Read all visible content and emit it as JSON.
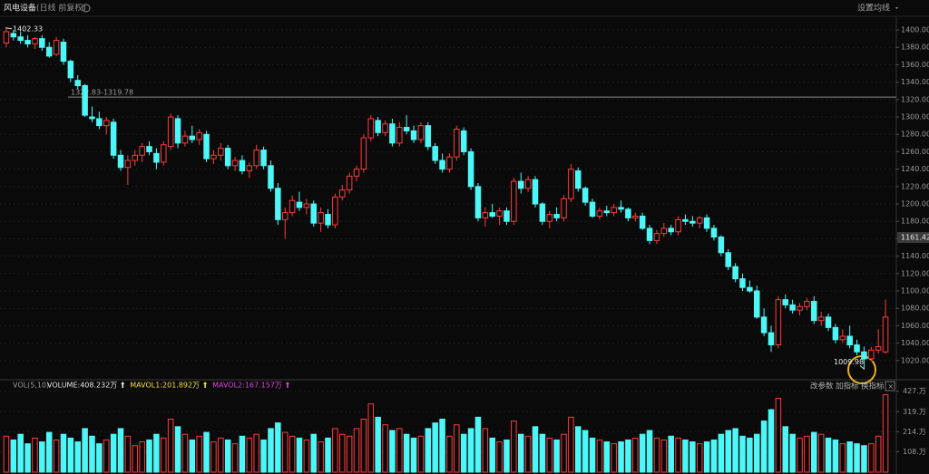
{
  "header": {
    "title": "风电设备",
    "mode": "(日线 前复权)",
    "ma_setting": "设置均线"
  },
  "chart_data": [
    {
      "type": "candlestick",
      "up_color": "#ff3b3b",
      "down_color": "#4df7f7",
      "grid": true,
      "ylim": [
        999,
        1424
      ],
      "yticks": [
        {
          "value": 1400,
          "label": "1400.00"
        },
        {
          "value": 1380,
          "label": "1380.00"
        },
        {
          "value": 1360,
          "label": "1360.00"
        },
        {
          "value": 1340,
          "label": "1340.00"
        },
        {
          "value": 1320,
          "label": "1320.00"
        },
        {
          "value": 1300,
          "label": "1300.00"
        },
        {
          "value": 1280,
          "label": "1280.00"
        },
        {
          "value": 1260,
          "label": "1260.00"
        },
        {
          "value": 1240,
          "label": "1240.00"
        },
        {
          "value": 1220,
          "label": "1220.00"
        },
        {
          "value": 1200,
          "label": "1200.00"
        },
        {
          "value": 1180,
          "label": "1180.00"
        },
        {
          "value": 1160,
          "label": "1160.00"
        },
        {
          "value": 1140,
          "label": "1140.00"
        },
        {
          "value": 1120,
          "label": "1120.00"
        },
        {
          "value": 1100,
          "label": "1100.00"
        },
        {
          "value": 1080,
          "label": "1080.00"
        },
        {
          "value": 1060,
          "label": "1060.00"
        },
        {
          "value": 1040,
          "label": "1040.00"
        },
        {
          "value": 1020,
          "label": "1020.00"
        }
      ],
      "high_label": 1402.33,
      "low_label": 1009.98,
      "current_price": 1161.42,
      "range_line": {
        "label": "1322.83-1319.78",
        "value": 1322.83
      },
      "ohlc": [
        [
          1385,
          1402.33,
          1380,
          1398
        ],
        [
          1396,
          1400,
          1388,
          1392
        ],
        [
          1392,
          1398,
          1384,
          1388
        ],
        [
          1388,
          1394,
          1380,
          1384
        ],
        [
          1384,
          1392,
          1378,
          1390
        ],
        [
          1390,
          1394,
          1376,
          1380
        ],
        [
          1380,
          1386,
          1368,
          1370
        ],
        [
          1372,
          1392,
          1370,
          1388
        ],
        [
          1386,
          1390,
          1360,
          1364
        ],
        [
          1364,
          1366,
          1340,
          1345
        ],
        [
          1342,
          1348,
          1332,
          1336
        ],
        [
          1336,
          1338,
          1300,
          1302
        ],
        [
          1300,
          1312,
          1294,
          1298
        ],
        [
          1298,
          1306,
          1286,
          1290
        ],
        [
          1290,
          1300,
          1280,
          1296
        ],
        [
          1294,
          1298,
          1252,
          1256
        ],
        [
          1256,
          1262,
          1238,
          1242
        ],
        [
          1242,
          1256,
          1222,
          1250
        ],
        [
          1250,
          1262,
          1244,
          1256
        ],
        [
          1256,
          1270,
          1248,
          1266
        ],
        [
          1266,
          1272,
          1256,
          1260
        ],
        [
          1258,
          1264,
          1240,
          1248
        ],
        [
          1248,
          1272,
          1244,
          1268
        ],
        [
          1266,
          1304,
          1262,
          1300
        ],
        [
          1298,
          1302,
          1264,
          1270
        ],
        [
          1270,
          1284,
          1266,
          1278
        ],
        [
          1278,
          1290,
          1270,
          1274
        ],
        [
          1274,
          1286,
          1268,
          1282
        ],
        [
          1280,
          1284,
          1248,
          1252
        ],
        [
          1252,
          1262,
          1246,
          1256
        ],
        [
          1256,
          1270,
          1250,
          1264
        ],
        [
          1264,
          1268,
          1240,
          1244
        ],
        [
          1244,
          1254,
          1238,
          1250
        ],
        [
          1250,
          1256,
          1234,
          1238
        ],
        [
          1238,
          1248,
          1230,
          1244
        ],
        [
          1244,
          1268,
          1240,
          1262
        ],
        [
          1262,
          1266,
          1240,
          1244
        ],
        [
          1244,
          1250,
          1214,
          1218
        ],
        [
          1218,
          1224,
          1176,
          1182
        ],
        [
          1182,
          1196,
          1160,
          1190
        ],
        [
          1190,
          1210,
          1186,
          1204
        ],
        [
          1202,
          1214,
          1192,
          1196
        ],
        [
          1196,
          1206,
          1188,
          1200
        ],
        [
          1200,
          1204,
          1174,
          1178
        ],
        [
          1178,
          1196,
          1168,
          1190
        ],
        [
          1188,
          1194,
          1172,
          1176
        ],
        [
          1176,
          1212,
          1172,
          1208
        ],
        [
          1208,
          1222,
          1204,
          1216
        ],
        [
          1216,
          1236,
          1212,
          1232
        ],
        [
          1232,
          1244,
          1226,
          1240
        ],
        [
          1240,
          1280,
          1236,
          1276
        ],
        [
          1276,
          1302,
          1272,
          1298
        ],
        [
          1296,
          1300,
          1278,
          1282
        ],
        [
          1282,
          1296,
          1278,
          1292
        ],
        [
          1292,
          1298,
          1266,
          1270
        ],
        [
          1270,
          1294,
          1266,
          1288
        ],
        [
          1288,
          1302,
          1280,
          1284
        ],
        [
          1284,
          1290,
          1270,
          1274
        ],
        [
          1274,
          1294,
          1270,
          1290
        ],
        [
          1290,
          1294,
          1262,
          1266
        ],
        [
          1266,
          1270,
          1246,
          1250
        ],
        [
          1250,
          1258,
          1236,
          1240
        ],
        [
          1240,
          1258,
          1236,
          1254
        ],
        [
          1254,
          1290,
          1250,
          1286
        ],
        [
          1284,
          1288,
          1256,
          1260
        ],
        [
          1260,
          1264,
          1216,
          1220
        ],
        [
          1220,
          1224,
          1180,
          1184
        ],
        [
          1184,
          1196,
          1174,
          1190
        ],
        [
          1190,
          1200,
          1184,
          1186
        ],
        [
          1186,
          1196,
          1176,
          1192
        ],
        [
          1192,
          1196,
          1176,
          1180
        ],
        [
          1180,
          1230,
          1176,
          1226
        ],
        [
          1226,
          1236,
          1212,
          1218
        ],
        [
          1218,
          1232,
          1214,
          1228
        ],
        [
          1228,
          1232,
          1196,
          1200
        ],
        [
          1200,
          1202,
          1176,
          1180
        ],
        [
          1180,
          1192,
          1172,
          1188
        ],
        [
          1188,
          1196,
          1180,
          1184
        ],
        [
          1184,
          1210,
          1180,
          1206
        ],
        [
          1206,
          1246,
          1202,
          1240
        ],
        [
          1238,
          1242,
          1214,
          1218
        ],
        [
          1218,
          1220,
          1198,
          1202
        ],
        [
          1202,
          1206,
          1184,
          1186
        ],
        [
          1186,
          1196,
          1182,
          1192
        ],
        [
          1192,
          1198,
          1186,
          1190
        ],
        [
          1190,
          1200,
          1186,
          1196
        ],
        [
          1196,
          1204,
          1190,
          1194
        ],
        [
          1194,
          1196,
          1180,
          1184
        ],
        [
          1184,
          1190,
          1180,
          1186
        ],
        [
          1186,
          1190,
          1170,
          1172
        ],
        [
          1172,
          1176,
          1154,
          1158
        ],
        [
          1158,
          1170,
          1154,
          1166
        ],
        [
          1166,
          1178,
          1162,
          1172
        ],
        [
          1172,
          1176,
          1164,
          1168
        ],
        [
          1168,
          1186,
          1164,
          1182
        ],
        [
          1182,
          1188,
          1176,
          1180
        ],
        [
          1180,
          1186,
          1174,
          1178
        ],
        [
          1178,
          1186,
          1172,
          1184
        ],
        [
          1184,
          1188,
          1168,
          1172
        ],
        [
          1172,
          1176,
          1158,
          1162
        ],
        [
          1162,
          1164,
          1140,
          1144
        ],
        [
          1144,
          1148,
          1124,
          1128
        ],
        [
          1128,
          1132,
          1110,
          1114
        ],
        [
          1114,
          1120,
          1100,
          1104
        ],
        [
          1104,
          1112,
          1098,
          1100
        ],
        [
          1100,
          1106,
          1068,
          1070
        ],
        [
          1070,
          1080,
          1048,
          1052
        ],
        [
          1052,
          1060,
          1030,
          1038
        ],
        [
          1038,
          1094,
          1034,
          1090
        ],
        [
          1090,
          1096,
          1080,
          1084
        ],
        [
          1084,
          1090,
          1074,
          1078
        ],
        [
          1078,
          1086,
          1072,
          1082
        ],
        [
          1082,
          1092,
          1078,
          1088
        ],
        [
          1088,
          1094,
          1062,
          1066
        ],
        [
          1066,
          1076,
          1060,
          1070
        ],
        [
          1070,
          1074,
          1054,
          1058
        ],
        [
          1058,
          1062,
          1040,
          1044
        ],
        [
          1044,
          1056,
          1040,
          1048
        ],
        [
          1048,
          1060,
          1034,
          1038
        ],
        [
          1038,
          1044,
          1026,
          1030
        ],
        [
          1030,
          1036,
          1009.98,
          1022
        ],
        [
          1022,
          1036,
          1020,
          1032
        ],
        [
          1032,
          1056,
          1028,
          1036
        ],
        [
          1030,
          1090,
          1028,
          1070
        ]
      ]
    },
    {
      "type": "bar",
      "title": "VOL(5,10)",
      "ylim": [
        0,
        440
      ],
      "yticks": [
        {
          "value": 427,
          "label": "427.万"
        },
        {
          "value": 319,
          "label": "319.万"
        },
        {
          "value": 214,
          "label": "214.万"
        },
        {
          "value": 108,
          "label": "108.万"
        }
      ],
      "indicators": [
        {
          "label": "VOLUME:408.232万",
          "color": "#e8e8e8"
        },
        {
          "label": "MAVOL1:201.892万",
          "color": "#f0e030"
        },
        {
          "label": "MAVOL2:167.157万",
          "color": "#e040e0"
        }
      ],
      "buttons": [
        "改参数",
        "加指标",
        "换指标"
      ],
      "values": [
        190,
        170,
        200,
        150,
        180,
        160,
        210,
        170,
        200,
        180,
        160,
        230,
        190,
        150,
        170,
        200,
        230,
        190,
        140,
        160,
        170,
        200,
        180,
        280,
        240,
        200,
        170,
        190,
        210,
        160,
        180,
        170,
        150,
        190,
        180,
        200,
        170,
        230,
        260,
        210,
        190,
        180,
        170,
        200,
        160,
        180,
        230,
        200,
        190,
        230,
        280,
        360,
        290,
        250,
        220,
        230,
        200,
        180,
        190,
        230,
        260,
        280,
        190,
        250,
        200,
        230,
        290,
        230,
        180,
        160,
        170,
        270,
        200,
        190,
        240,
        200,
        180,
        170,
        200,
        290,
        240,
        220,
        180,
        170,
        160,
        150,
        160,
        170,
        180,
        200,
        220,
        180,
        170,
        190,
        180,
        170,
        160,
        150,
        160,
        170,
        200,
        220,
        230,
        190,
        180,
        200,
        270,
        330,
        390,
        240,
        200,
        180,
        190,
        210,
        200,
        180,
        170,
        150,
        160,
        150,
        140,
        150,
        190,
        408.232
      ]
    }
  ]
}
